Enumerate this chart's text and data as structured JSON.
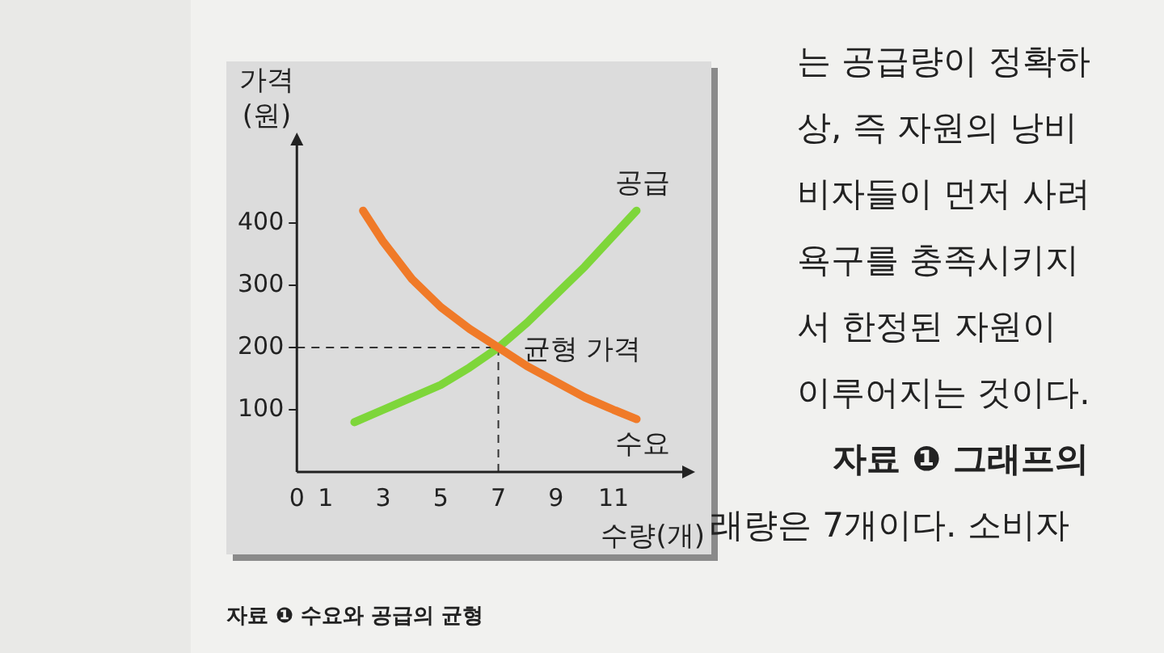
{
  "chart_data": {
    "type": "line",
    "xlabel": "수량(개)",
    "ylabel": "가격\n(원)",
    "xlim": [
      0,
      13.5
    ],
    "xticks": [
      0,
      1,
      3,
      5,
      7,
      9,
      11
    ],
    "ylim": [
      0,
      530
    ],
    "yticks": [
      100,
      200,
      300,
      400
    ],
    "grid": false,
    "legend": false,
    "marker": "none",
    "line_style": "solid",
    "tick_labels": "xy",
    "series": [
      {
        "name": "수요",
        "color": "#f07a28",
        "x": [
          2.3,
          3,
          4,
          5,
          6,
          7,
          8,
          9,
          10,
          11,
          11.8
        ],
        "values": [
          420,
          370,
          310,
          265,
          230,
          200,
          170,
          145,
          120,
          100,
          85
        ]
      },
      {
        "name": "공급",
        "color": "#7ed63a",
        "x": [
          2,
          3,
          4,
          5,
          6,
          7,
          8,
          9,
          10,
          11,
          11.8
        ],
        "values": [
          80,
          100,
          120,
          140,
          168,
          200,
          240,
          285,
          330,
          380,
          420
        ]
      }
    ],
    "ref_lines": [
      {
        "axis": "y",
        "value": 200,
        "line_style": "dashed",
        "color": "#333333"
      },
      {
        "axis": "x",
        "value": 7,
        "line_style": "dashed",
        "color": "#333333"
      }
    ],
    "annotations": [
      {
        "text": "균형 가격",
        "x": 7,
        "y": 200
      },
      "자료 ❶ 수요와 공급의 균형",
      "는 공급량이 정확하",
      "상, 즉 자원의 낭비",
      "비자들이 먼저 사려",
      "욕구를 충족시키지",
      "서 한정된 자원이",
      "이루어지는 것이다.",
      "자료 ❶ 그래프의",
      "래량은 7개이다. 소비자"
    ]
  }
}
